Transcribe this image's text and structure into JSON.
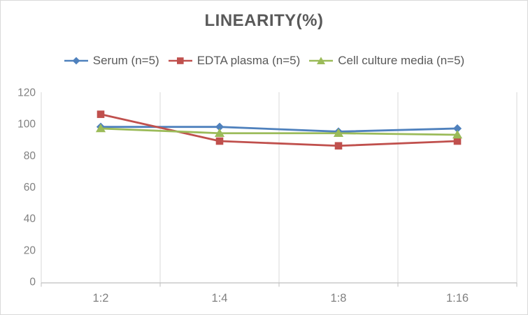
{
  "title": "LINEARITY(%)",
  "chart_data": {
    "type": "line",
    "title": "LINEARITY(%)",
    "categories": [
      "1:2",
      "1:4",
      "1:8",
      "1:16"
    ],
    "series": [
      {
        "name": "Serum (n=5)",
        "color": "#4F81BD",
        "marker": "diamond",
        "values": [
          98,
          98,
          95,
          97
        ]
      },
      {
        "name": "EDTA plasma (n=5)",
        "color": "#C0504D",
        "marker": "square",
        "values": [
          106,
          89,
          86,
          89
        ]
      },
      {
        "name": "Cell culture media (n=5)",
        "color": "#9BBB59",
        "marker": "triangle",
        "values": [
          97,
          94,
          94,
          93
        ]
      }
    ],
    "xlabel": "",
    "ylabel": "",
    "ylim": [
      0,
      120
    ],
    "yticks": [
      0,
      20,
      40,
      60,
      80,
      100,
      120
    ],
    "grid": "vertical-only",
    "legend_position": "top-center"
  },
  "styles": {
    "title_color": "#595959",
    "legend_text_color": "#595959",
    "axis_text_color": "#808080",
    "gridline_color": "#D9D9D9",
    "axis_line_color": "#BFBFBF",
    "left_axis_color": "#D9D9D9",
    "border_color": "#D9D9D9",
    "background_color": "#FFFFFF"
  }
}
